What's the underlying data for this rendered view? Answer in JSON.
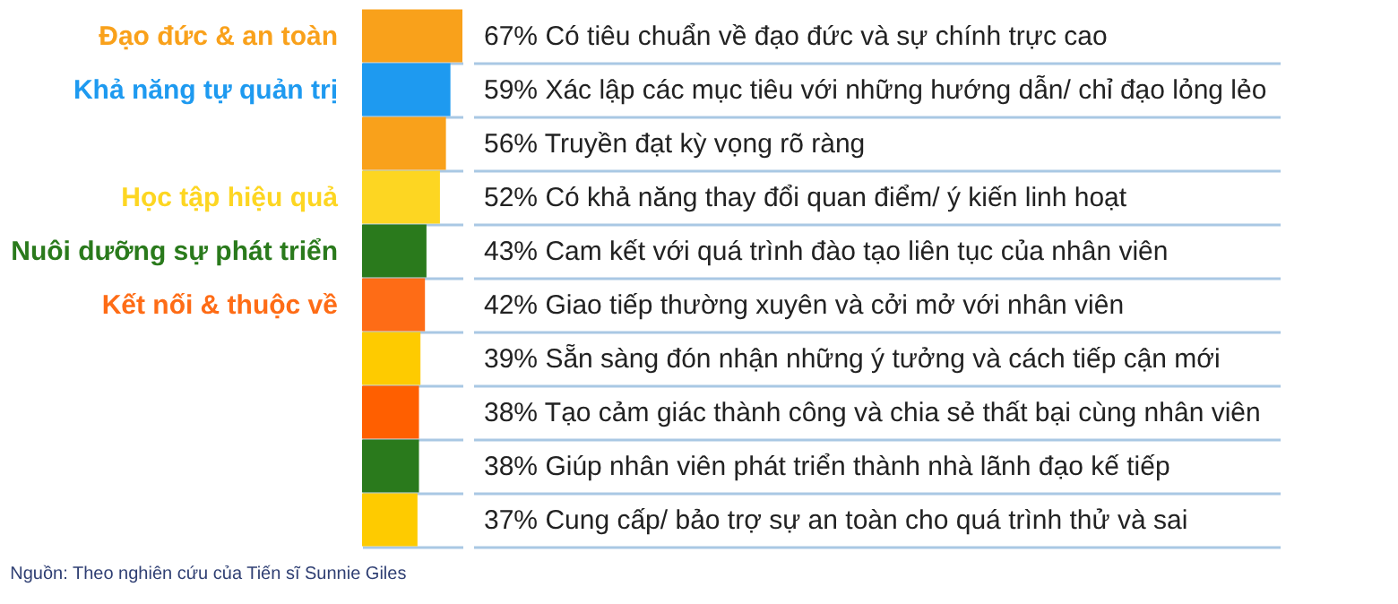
{
  "chart_data": {
    "type": "bar",
    "orientation": "horizontal",
    "categories": [
      "Đạo đức & an toàn",
      "Khả năng tự quản trị",
      null,
      "Học tập hiệu quả",
      "Nuôi dưỡng sự phát triển",
      "Kết nối & thuộc về",
      null,
      null,
      null,
      null
    ],
    "values": [
      67,
      59,
      56,
      52,
      43,
      42,
      39,
      38,
      38,
      37
    ],
    "colors": [
      "#f9a11b",
      "#1e9af0",
      "#f9a11b",
      "#fdd622",
      "#2a7a1c",
      "#fe6c16",
      "#fecb00",
      "#ff5f00",
      "#2a7a1c",
      "#fecb00"
    ],
    "value_labels": [
      "67% Có tiêu chuẩn về đạo đức và sự chính trực cao",
      "59% Xác lập các mục tiêu với những hướng dẫn/ chỉ đạo lỏng lẻo",
      "56% Truyền đạt kỳ vọng rõ ràng",
      "52% Có khả năng thay đổi quan điểm/ ý kiến linh hoạt",
      "43% Cam kết với quá trình đào tạo liên tục của nhân viên",
      "42% Giao tiếp thường xuyên và cởi mở với nhân viên",
      "39% Sẵn sàng đón nhận những ý tưởng và cách tiếp cận mới",
      "38% Tạo cảm giác thành công và chia sẻ thất bại cùng nhân viên",
      "38% Giúp nhân viên phát triển thành nhà lãnh đạo kế tiếp",
      "37% Cung cấp/ bảo trợ sự an toàn cho quá trình thử và sai"
    ],
    "grid": "y",
    "tick_labels": "y",
    "annotations": [
      "Nguồn: Theo nghiên cứu của Tiến sĩ Sunnie Giles"
    ]
  }
}
